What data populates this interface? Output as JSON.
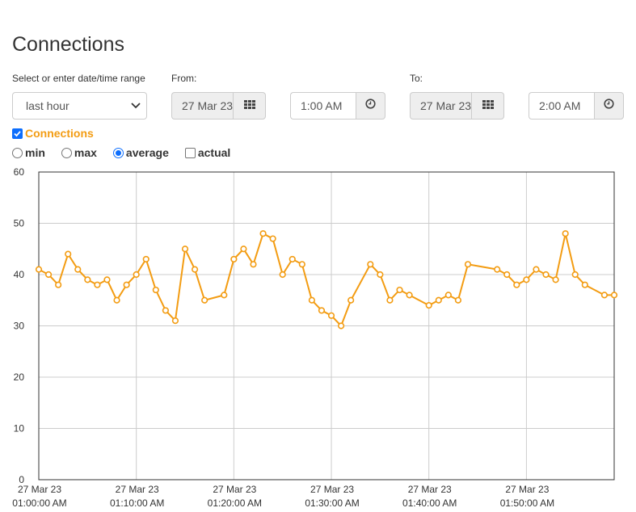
{
  "page": {
    "title": "Connections"
  },
  "filters": {
    "range_label": "Select or enter date/time range",
    "range_value": "last hour",
    "from_label": "From:",
    "from_date": "27 Mar 23",
    "from_time": "1:00 AM",
    "to_label": "To:",
    "to_date": "27 Mar 23",
    "to_time": "2:00 AM"
  },
  "series_toggle": {
    "label": "Connections",
    "checked": true,
    "color": "#f39c12"
  },
  "stat_options": [
    {
      "label": "min",
      "selected": false
    },
    {
      "label": "max",
      "selected": false
    },
    {
      "label": "average",
      "selected": true
    },
    {
      "label": "actual",
      "selected": false,
      "kind": "checkbox"
    }
  ],
  "chart_data": {
    "type": "line",
    "title": "",
    "xlabel": "",
    "ylabel": "",
    "ylim": [
      0,
      60
    ],
    "yticks": [
      0,
      10,
      20,
      30,
      40,
      50,
      60
    ],
    "xlim_minutes": [
      0,
      59
    ],
    "xticks": [
      {
        "minute": 0,
        "date": "27 Mar 23",
        "time": "01:00:00 AM"
      },
      {
        "minute": 10,
        "date": "27 Mar 23",
        "time": "01:10:00 AM"
      },
      {
        "minute": 20,
        "date": "27 Mar 23",
        "time": "01:20:00 AM"
      },
      {
        "minute": 30,
        "date": "27 Mar 23",
        "time": "01:30:00 AM"
      },
      {
        "minute": 40,
        "date": "27 Mar 23",
        "time": "01:40:00 AM"
      },
      {
        "minute": 50,
        "date": "27 Mar 23",
        "time": "01:50:00 AM"
      }
    ],
    "grid": true,
    "series": [
      {
        "color": "#f39c12",
        "points": [
          [
            0,
            41
          ],
          [
            1,
            40
          ],
          [
            2,
            38
          ],
          [
            3,
            44
          ],
          [
            4,
            41
          ],
          [
            5,
            39
          ],
          [
            6,
            38
          ],
          [
            7,
            39
          ],
          [
            8,
            35
          ],
          [
            9,
            38
          ],
          [
            10,
            40
          ],
          [
            11,
            43
          ],
          [
            12,
            37
          ],
          [
            13,
            33
          ],
          [
            14,
            31
          ],
          [
            15,
            45
          ],
          [
            16,
            41
          ],
          [
            17,
            35
          ],
          [
            19,
            36
          ],
          [
            20,
            43
          ],
          [
            21,
            45
          ],
          [
            22,
            42
          ],
          [
            23,
            48
          ],
          [
            24,
            47
          ],
          [
            25,
            40
          ],
          [
            26,
            43
          ],
          [
            27,
            42
          ],
          [
            28,
            35
          ],
          [
            29,
            33
          ],
          [
            30,
            32
          ],
          [
            31,
            30
          ],
          [
            32,
            35
          ],
          [
            34,
            42
          ],
          [
            35,
            40
          ],
          [
            36,
            35
          ],
          [
            37,
            37
          ],
          [
            38,
            36
          ],
          [
            40,
            34
          ],
          [
            41,
            35
          ],
          [
            42,
            36
          ],
          [
            43,
            35
          ],
          [
            44,
            42
          ],
          [
            47,
            41
          ],
          [
            48,
            40
          ],
          [
            49,
            38
          ],
          [
            50,
            39
          ],
          [
            51,
            41
          ],
          [
            52,
            40
          ],
          [
            53,
            39
          ],
          [
            54,
            48
          ],
          [
            55,
            40
          ],
          [
            56,
            38
          ],
          [
            58,
            36
          ],
          [
            59,
            36
          ]
        ]
      }
    ]
  }
}
